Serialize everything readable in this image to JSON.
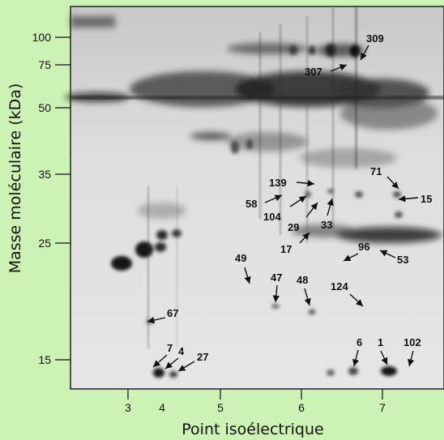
{
  "y_axis": {
    "title": "Masse moléculaire (kDa)",
    "ticks": [
      "100",
      "75",
      "50",
      "35",
      "25",
      "15"
    ]
  },
  "x_axis": {
    "title": "Point isoélectrique",
    "ticks": [
      "3",
      "4",
      "5",
      "6",
      "7"
    ]
  },
  "spot_labels": [
    "309",
    "307",
    "71",
    "139",
    "15",
    "58",
    "104",
    "29",
    "33",
    "17",
    "96",
    "53",
    "49",
    "47",
    "48",
    "124",
    "67",
    "6",
    "1",
    "102",
    "7",
    "4",
    "27"
  ],
  "colors": {
    "background": "#ccf2b5",
    "gel": "#e2e2e2",
    "spots": "#111111"
  }
}
